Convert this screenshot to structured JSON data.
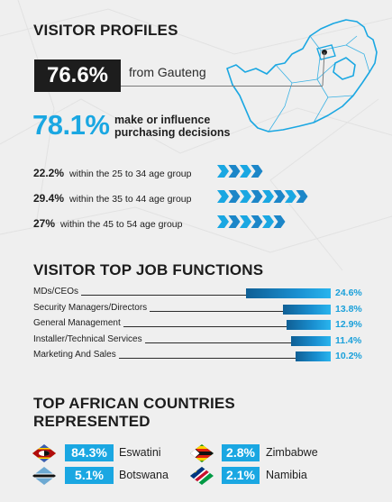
{
  "visitor_profiles": {
    "heading": "VISITOR PROFILES",
    "gauteng": {
      "value": "76.6%",
      "label": "from Gauteng"
    },
    "purchasing": {
      "value": "78.1%",
      "line1": "make or influence",
      "line2": "purchasing decisions"
    },
    "age_groups": [
      {
        "value": "22.2%",
        "label": "within the 25 to 34 age group",
        "chevrons": 4
      },
      {
        "value": "29.4%",
        "label": "within the 35 to 44 age group",
        "chevrons": 8
      },
      {
        "value": "27%",
        "label": "within the 45 to 54 age group",
        "chevrons": 6
      }
    ]
  },
  "job_functions": {
    "heading": "VISITOR TOP JOB FUNCTIONS",
    "rows": [
      {
        "label": "MDs/CEOs",
        "value": "24.6%",
        "share": 24.6
      },
      {
        "label": "Security Managers/Directors",
        "value": "13.8%",
        "share": 13.8
      },
      {
        "label": "General Management",
        "value": "12.9%",
        "share": 12.9
      },
      {
        "label": "Installer/Technical Services",
        "value": "11.4%",
        "share": 11.4
      },
      {
        "label": "Marketing And Sales",
        "value": "10.2%",
        "share": 10.2
      }
    ]
  },
  "countries": {
    "heading_line1": "TOP AFRICAN COUNTRIES",
    "heading_line2": "REPRESENTED",
    "items": [
      {
        "name": "Eswatini",
        "value": "84.3%",
        "flag": "eswatini-flag-icon"
      },
      {
        "name": "Zimbabwe",
        "value": "2.8%",
        "flag": "zimbabwe-flag-icon"
      },
      {
        "name": "Botswana",
        "value": "5.1%",
        "flag": "botswana-flag-icon"
      },
      {
        "name": "Namibia",
        "value": "2.1%",
        "flag": "namibia-flag-icon"
      }
    ]
  },
  "colors": {
    "accent": "#1aa7e2",
    "dark_box": "#1d1d1d",
    "bar_dark": "#0f5f95",
    "map_stroke": "#1aa7e2"
  }
}
